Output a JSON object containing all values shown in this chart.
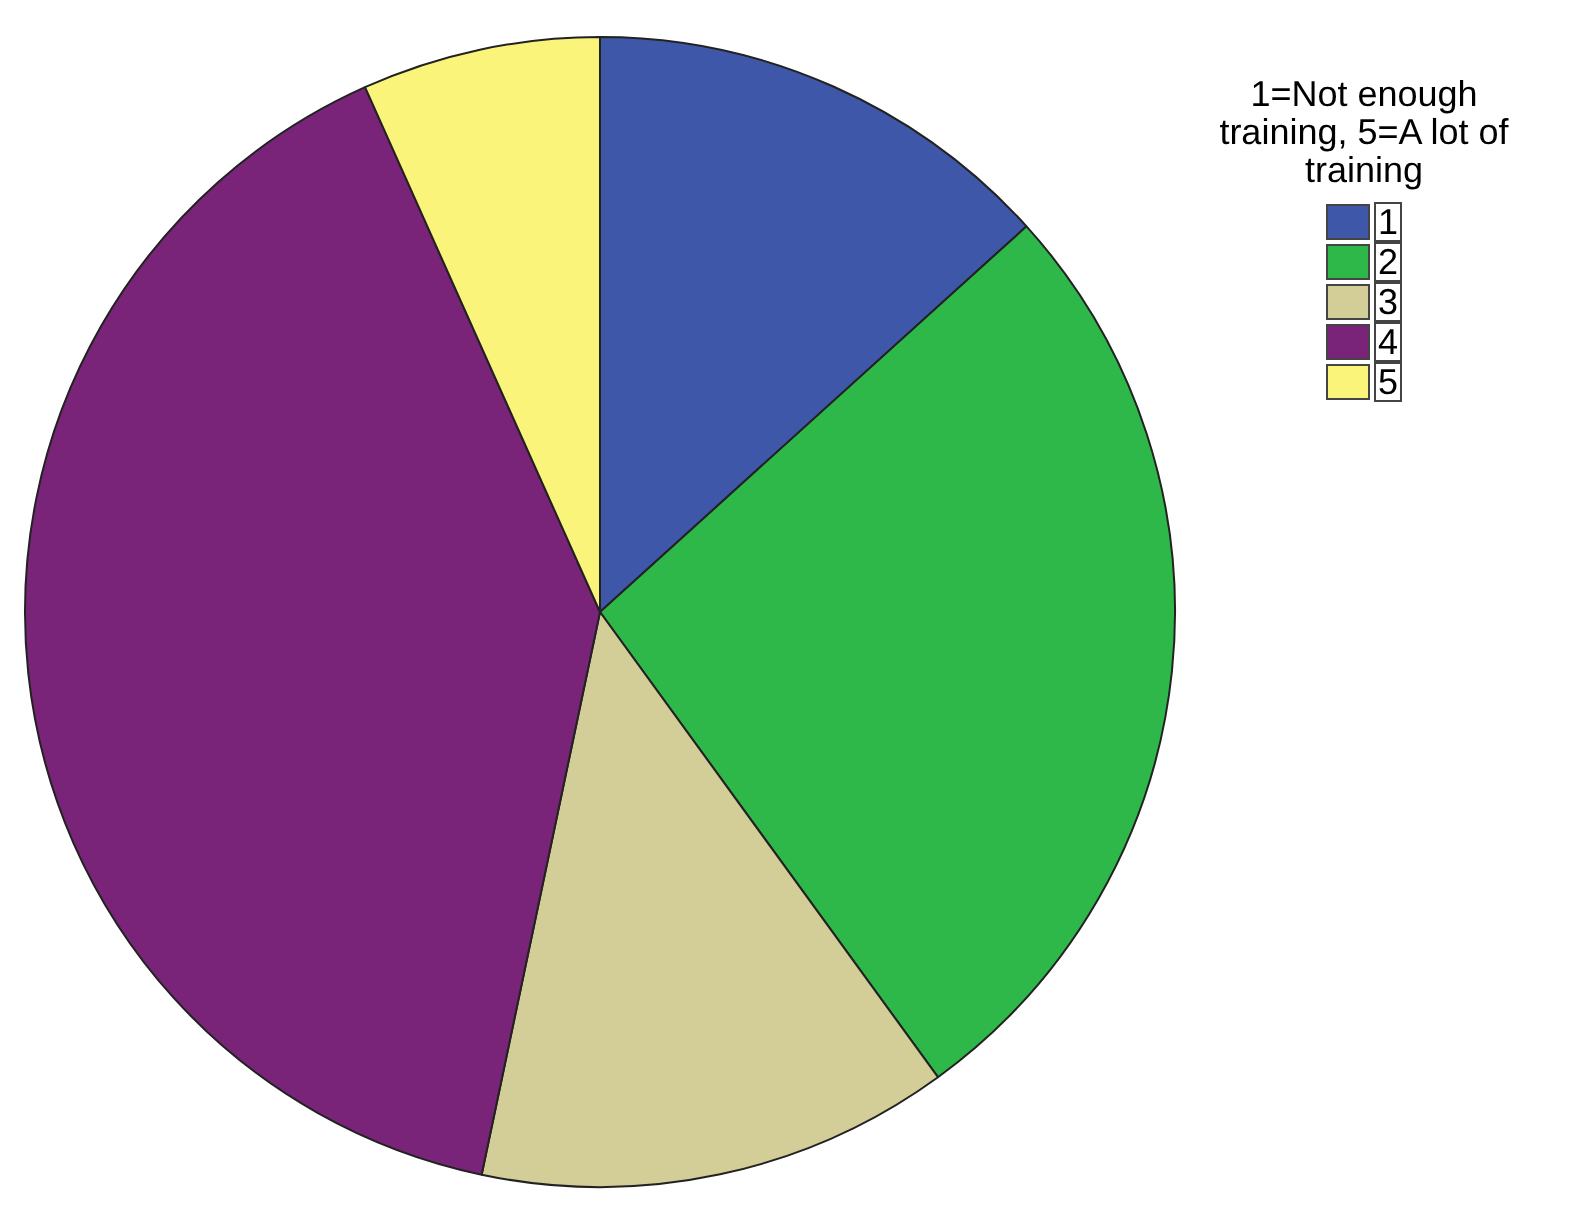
{
  "chart_data": {
    "type": "pie",
    "legend_title": "1=Not enough training, 5=A lot of training",
    "legend": "top right",
    "categories": [
      "1",
      "2",
      "3",
      "4",
      "5"
    ],
    "values": [
      13.3,
      26.7,
      13.3,
      40,
      6.7
    ],
    "colors": [
      "#3f57a8",
      "#2fb84a",
      "#d3cd98",
      "#7a2479",
      "#faf57a"
    ]
  }
}
